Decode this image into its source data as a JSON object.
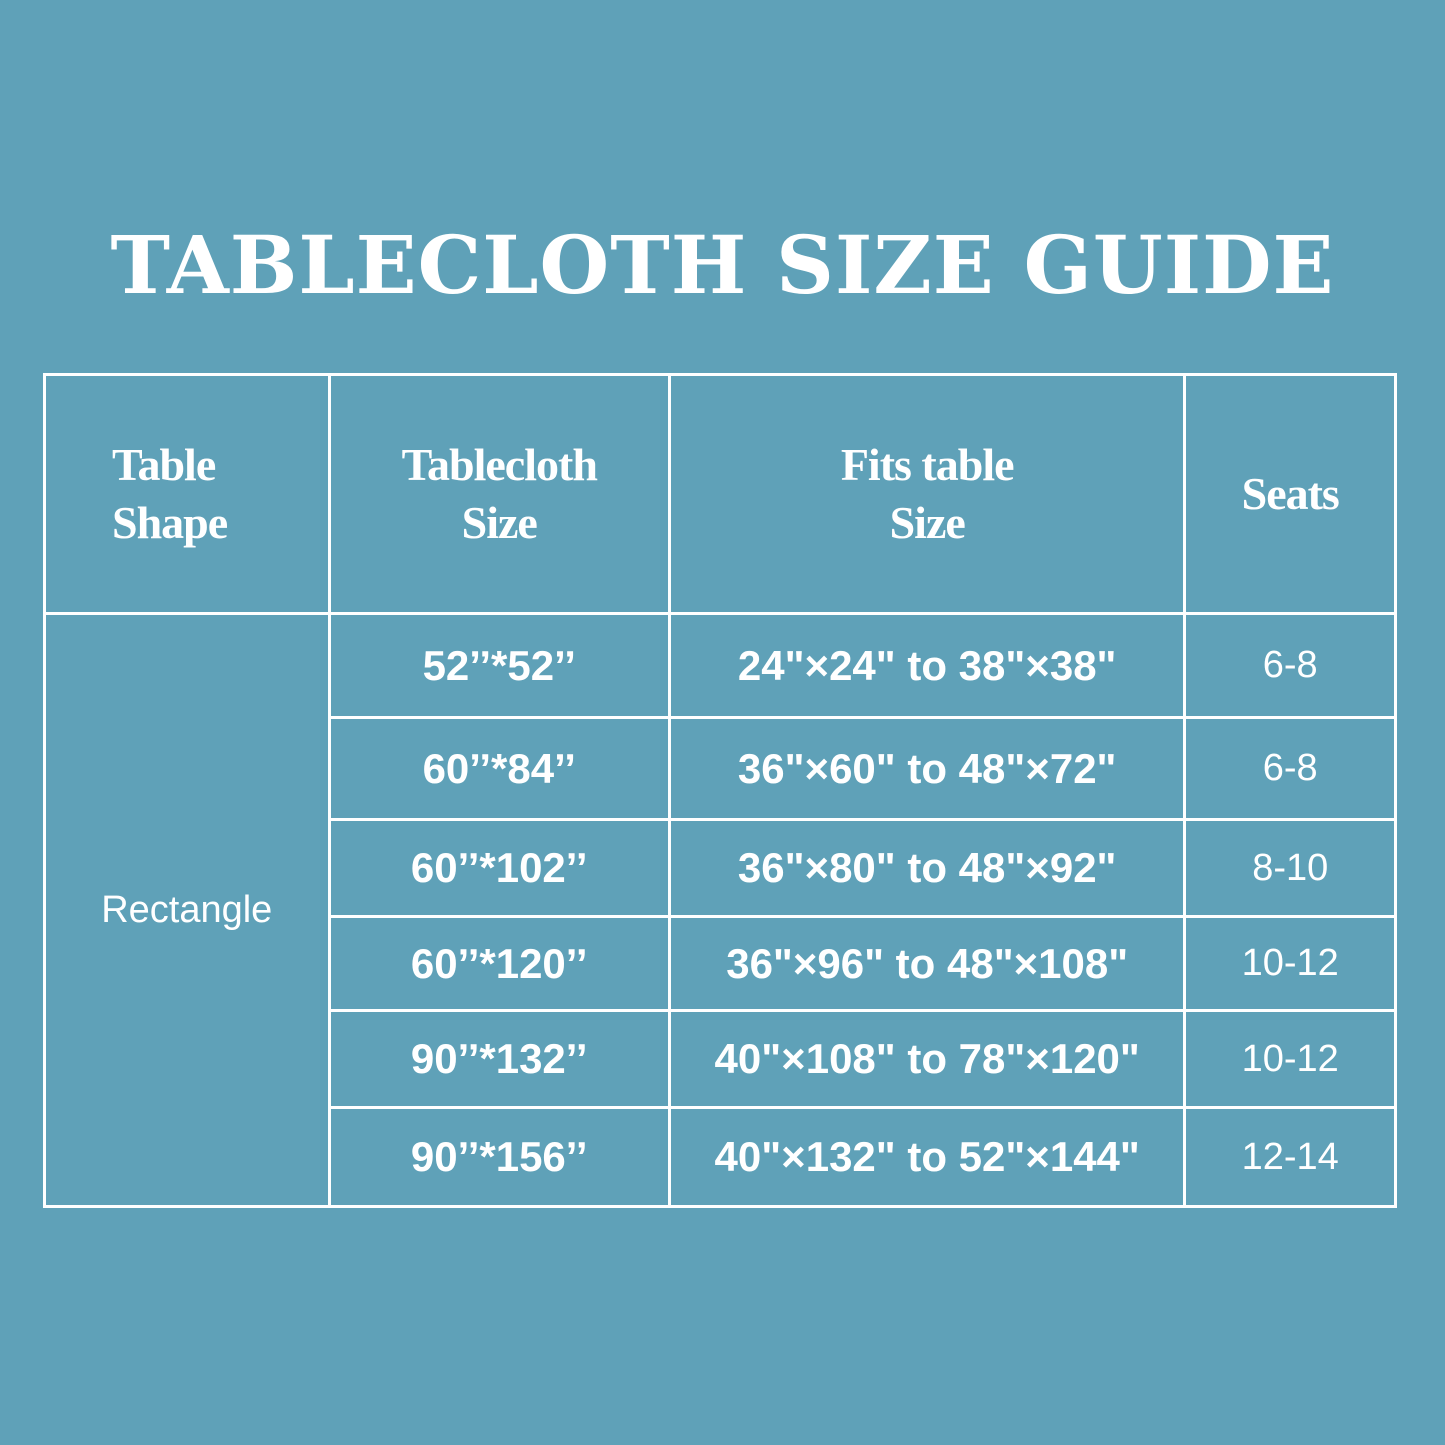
{
  "title": "TABLECLOTH SIZE GUIDE",
  "colors": {
    "background": "#5fa1b8",
    "text": "#ffffff",
    "lines": "#ffffff"
  },
  "headers": [
    [
      "Table",
      "Shape"
    ],
    [
      "Tablecloth",
      "Size"
    ],
    [
      "Fits table",
      "Size"
    ],
    [
      "Seats"
    ]
  ],
  "shape": "Rectangle",
  "rows": [
    {
      "size": "52’’*52’’",
      "fits": "24\"×24\" to 38\"×38\"",
      "seats": "6-8"
    },
    {
      "size": "60’’*84’’",
      "fits": "36\"×60\" to 48\"×72\"",
      "seats": "6-8"
    },
    {
      "size": "60’’*102’’",
      "fits": "36\"×80\" to 48\"×92\"",
      "seats": "8-10"
    },
    {
      "size": "60’’*120’’",
      "fits": "36\"×96\" to 48\"×108\"",
      "seats": "10-12"
    },
    {
      "size": "90’’*132’’",
      "fits": "40\"×108\" to 78\"×120\"",
      "seats": "10-12"
    },
    {
      "size": "90’’*156’’",
      "fits": "40\"×132\" to 52\"×144\"",
      "seats": "12-14"
    }
  ]
}
